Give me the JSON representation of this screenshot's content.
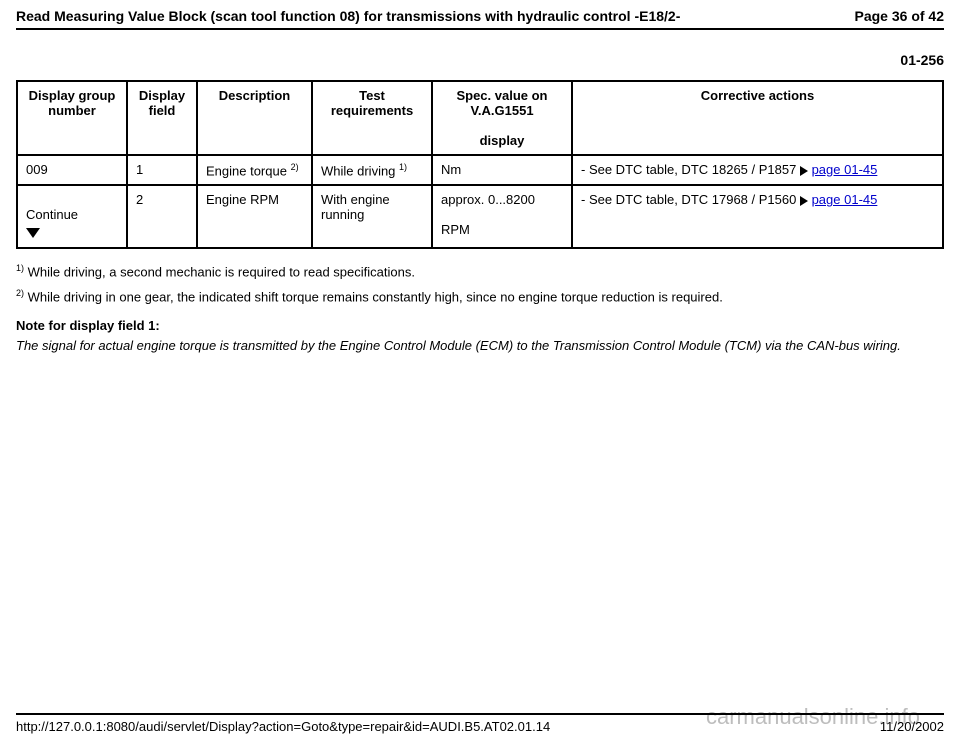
{
  "header": {
    "title": "Read Measuring Value Block (scan tool function 08) for transmissions with hydraulic control -E18/2-",
    "page": "Page 36 of 42"
  },
  "section_number": "01-256",
  "table": {
    "headers": {
      "c1": "Display group number",
      "c2": "Display field",
      "c3": "Description",
      "c4": "Test requirements",
      "c5": "Spec. value on V.A.G1551",
      "c5b": "display",
      "c6": "Corrective actions"
    },
    "rows": [
      {
        "group": "009",
        "field": "1",
        "desc": "Engine torque",
        "desc_sup": "2)",
        "test": "While driving",
        "test_sup": "1)",
        "spec": "Nm",
        "spec_sub": "",
        "action_pre": "- See DTC table, DTC 18265 / P1857 ",
        "action_link": "page 01-45"
      },
      {
        "group_continue": "Continue",
        "field": "2",
        "desc": "Engine RPM",
        "desc_sup": "",
        "test": "With engine running",
        "test_sup": "",
        "spec": "approx. 0...8200",
        "spec_sub": "RPM",
        "action_pre": "- See DTC table, DTC 17968 / P1560 ",
        "action_link": "page 01-45"
      }
    ]
  },
  "footnotes": {
    "f1": " While driving, a second mechanic is required to read specifications.",
    "f2": " While driving in one gear, the indicated shift torque remains constantly high, since no engine torque reduction is required."
  },
  "note": {
    "heading": "Note for display field 1:",
    "body": "The signal for actual engine torque is transmitted by the Engine Control Module (ECM) to the Transmission Control Module (TCM) via the CAN-bus wiring."
  },
  "footer": {
    "url": "http://127.0.0.1:8080/audi/servlet/Display?action=Goto&type=repair&id=AUDI.B5.AT02.01.14",
    "date": "11/20/2002"
  },
  "watermark": "carmanualsonline.info"
}
